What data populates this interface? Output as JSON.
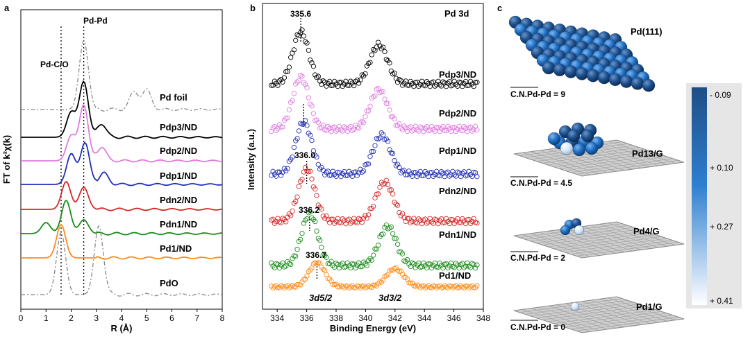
{
  "figure": {
    "panel_a": {
      "letter": "a",
      "ylabel": "FT of k²χ(k)",
      "xlabel": "R (Å)",
      "annotations": {
        "pd_pd": "Pd-Pd",
        "pd_co": "Pd-C/O"
      }
    },
    "panel_b": {
      "letter": "b",
      "ylabel": "Intensity (a.u.)",
      "xlabel": "Binding Energy (eV)",
      "title": "Pd 3d",
      "peak_labels": {
        "p1": "335.6",
        "p2": "336.0",
        "p3": "336.2",
        "p4": "336.7"
      },
      "bottom_labels": {
        "d52": "3d5/2",
        "d32": "3d3/2"
      }
    },
    "panel_c": {
      "letter": "c",
      "structures": [
        {
          "label": "Pd(111)",
          "cn": "C.N.Pd-Pd = 9"
        },
        {
          "label": "Pd13/G",
          "cn": "C.N.Pd-Pd = 4.5"
        },
        {
          "label": "Pd4/G",
          "cn": "C.N.Pd-Pd = 2"
        },
        {
          "label": "Pd1/G",
          "cn": "C.N.Pd-Pd = 0"
        }
      ],
      "colorbar_ticks": [
        "- 0.09",
        "+ 0.10",
        "+ 0.27",
        "+ 0.41"
      ],
      "colorbar_colors": {
        "top": "#1f4e85",
        "mid": "#2e7fd0",
        "bottom": "#ffffff"
      }
    }
  },
  "chart_data": [
    {
      "type": "line",
      "panel": "a",
      "xlabel": "R (Å)",
      "ylabel": "FT of k²χ(k)",
      "xlim": [
        0,
        8
      ],
      "xticks": [
        0,
        1,
        2,
        3,
        4,
        5,
        6,
        7,
        8
      ],
      "reference_lines_x": [
        1.6,
        2.5
      ],
      "series": [
        {
          "name": "Pd foil",
          "color": "#888888",
          "dashed": true,
          "peaks": [
            [
              2.5,
              1.0
            ],
            [
              4.5,
              0.25
            ],
            [
              5.0,
              0.28
            ]
          ]
        },
        {
          "name": "Pdp3/ND",
          "color": "#000000",
          "peaks": [
            [
              2.0,
              0.45
            ],
            [
              2.5,
              1.0
            ],
            [
              3.2,
              0.25
            ]
          ]
        },
        {
          "name": "Pdp2/ND",
          "color": "#e07be0",
          "peaks": [
            [
              2.0,
              0.45
            ],
            [
              2.5,
              1.0
            ],
            [
              3.2,
              0.25
            ]
          ]
        },
        {
          "name": "Pdp1/ND",
          "color": "#1f2db5",
          "peaks": [
            [
              2.0,
              0.55
            ],
            [
              2.55,
              0.75
            ],
            [
              3.3,
              0.2
            ]
          ]
        },
        {
          "name": "Pdn2/ND",
          "color": "#d62728",
          "peaks": [
            [
              1.8,
              0.5
            ],
            [
              2.5,
              0.4
            ]
          ]
        },
        {
          "name": "Pdn1/ND",
          "color": "#1a8a1a",
          "peaks": [
            [
              1.0,
              0.2
            ],
            [
              1.8,
              0.6
            ],
            [
              2.5,
              0.25
            ]
          ]
        },
        {
          "name": "Pd1/ND",
          "color": "#ff8c1a",
          "peaks": [
            [
              1.6,
              0.6
            ]
          ]
        },
        {
          "name": "PdO",
          "color": "#888888",
          "dashed": true,
          "peaks": [
            [
              1.6,
              0.9
            ],
            [
              3.1,
              1.0
            ]
          ]
        }
      ]
    },
    {
      "type": "scatter",
      "panel": "b",
      "xlabel": "Binding Energy (eV)",
      "ylabel": "Intensity (a.u.)",
      "xlim": [
        333,
        348
      ],
      "xticks": [
        334,
        336,
        338,
        340,
        342,
        344,
        346,
        348
      ],
      "series": [
        {
          "name": "Pdp3/ND",
          "color": "#000000",
          "peak_3d52": 335.6,
          "peak_3d32": 340.9
        },
        {
          "name": "Pdp2/ND",
          "color": "#e07be0",
          "peak_3d52": 335.6,
          "peak_3d32": 340.9
        },
        {
          "name": "Pdp1/ND",
          "color": "#1f2db5",
          "peak_3d52": 335.8,
          "peak_3d32": 341.1
        },
        {
          "name": "Pdn2/ND",
          "color": "#d62728",
          "peak_3d52": 336.0,
          "peak_3d32": 341.3
        },
        {
          "name": "Pdn1/ND",
          "color": "#1a8a1a",
          "peak_3d52": 336.2,
          "peak_3d32": 341.5
        },
        {
          "name": "Pd1/ND",
          "color": "#ff8c1a",
          "peak_3d52": 336.7,
          "peak_3d32": 342.0
        }
      ]
    }
  ]
}
